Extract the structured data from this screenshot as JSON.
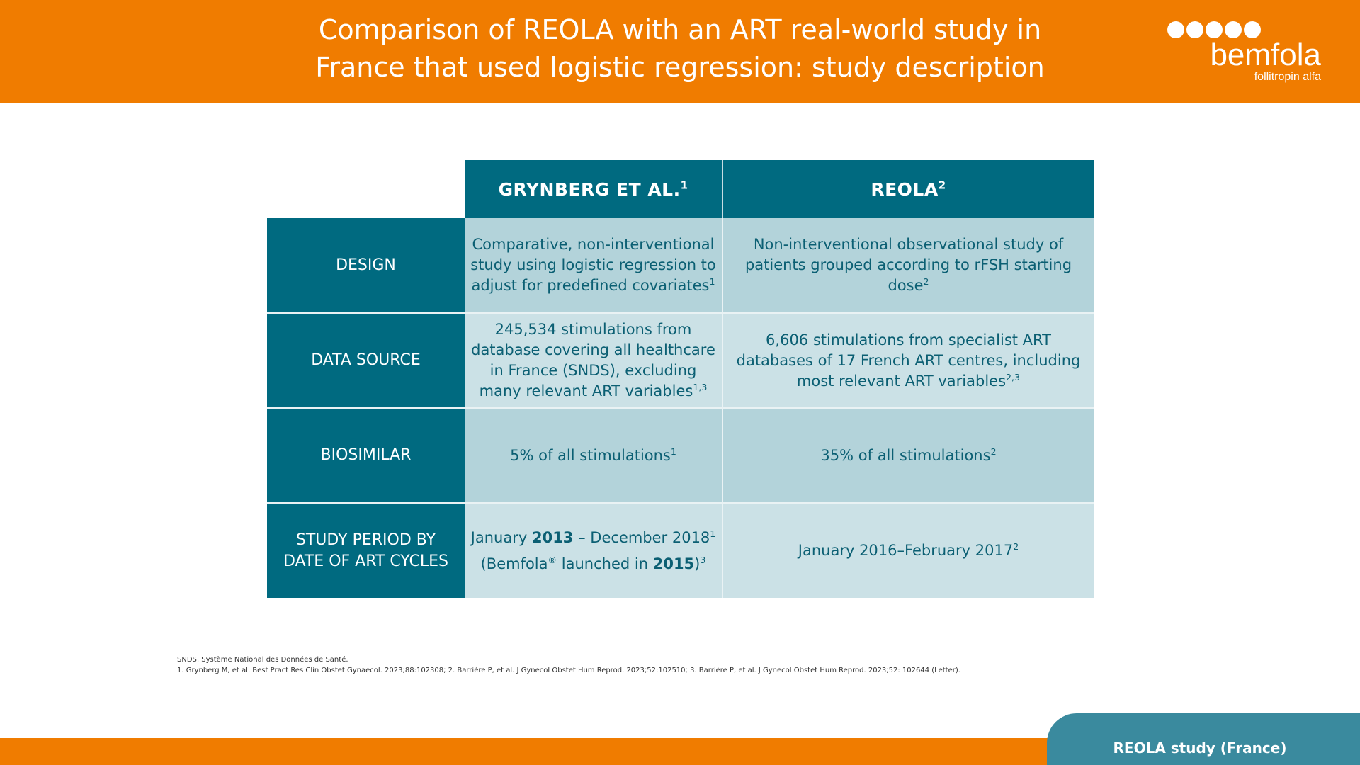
{
  "header": {
    "title_line1": "Comparison of REOLA with an ART real-world study in",
    "title_line2": "France that used logistic regression: study description"
  },
  "logo": {
    "word": "bemfola",
    "sub": "follitropin alfa",
    "icon": "five-dots-logo-icon"
  },
  "table": {
    "col1": {
      "label": "GRYNBERG ET AL.",
      "sup": "1"
    },
    "col2": {
      "label": "REOLA",
      "sup": "2"
    },
    "rows": [
      {
        "label": "DESIGN",
        "c1_text": "Comparative, non-interventional study using logistic regression to adjust for predefined covariates",
        "c1_sup": "1",
        "c2_text": "Non-interventional observational study of patients grouped according to rFSH starting dose",
        "c2_sup": "2"
      },
      {
        "label": "DATA SOURCE",
        "c1_text": "245,534 stimulations from database covering all healthcare in France (SNDS), excluding many relevant ART variables",
        "c1_sup": "1,3",
        "c2_text": "6,606 stimulations from specialist ART databases of 17 French ART centres, including most relevant ART variables",
        "c2_sup": "2,3"
      },
      {
        "label": "BIOSIMILAR",
        "c1_text": "5% of all stimulations",
        "c1_sup": "1",
        "c2_text": "35% of all stimulations",
        "c2_sup": "2"
      },
      {
        "label_line1": "STUDY PERIOD BY",
        "label_line2": "DATE OF ART CYCLES",
        "c1_a": "January ",
        "c1_b": "2013",
        "c1_c": " – December 2018",
        "c1_sup": "1",
        "c1_d": "(Bemfola",
        "c1_reg": "®",
        "c1_e": " launched in ",
        "c1_f": "2015",
        "c1_g": ")",
        "c1_sup2": "3",
        "c2_text": "January 2016–February 2017",
        "c2_sup": "2"
      }
    ]
  },
  "footnotes": {
    "abbrev": "SNDS, Système National des Données de Santé.",
    "refs": "1. Grynberg M, et al. Best Pract Res Clin Obstet Gynaecol. 2023;88:102308; 2. Barrière P, et al. J Gynecol Obstet Hum Reprod. 2023;52:102510; 3. Barrière P, et al. J Gynecol Obstet Hum Reprod. 2023;52: 102644 (Letter)."
  },
  "footer": {
    "tab_label": "REOLA study (France)"
  },
  "colors": {
    "orange": "#f07c00",
    "teal_dark": "#006a80",
    "teal_cell_dark": "#b3d3da",
    "teal_cell_light": "#cbe1e6",
    "footer_tab": "#3a8a9e"
  }
}
